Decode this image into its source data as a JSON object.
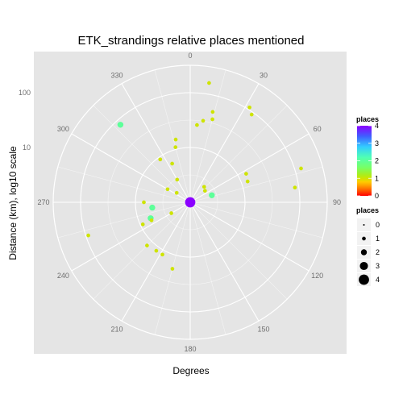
{
  "chart_data": {
    "type": "scatter",
    "coordinate_system": "polar",
    "title": "ETK_strandings relative places mentioned",
    "xlabel": "Degrees",
    "ylabel": "Distance (km), log10 scale",
    "angle_ticks": [
      "0",
      "30",
      "60",
      "90",
      "120",
      "150",
      "180",
      "210",
      "240",
      "270",
      "300",
      "330"
    ],
    "angle_range": [
      0,
      360
    ],
    "radius_scale": "log10",
    "radius_range_log10": [
      0,
      2.5
    ],
    "radius_ticks": [
      {
        "value": 10,
        "label": "10"
      },
      {
        "value": 100,
        "label": "100"
      }
    ],
    "grid": true,
    "legend_position": "right",
    "legends": [
      {
        "type": "colorbar",
        "title": "places",
        "ticks": [
          "4",
          "3",
          "2",
          "1",
          "0"
        ],
        "colors": [
          "#8b00ff",
          "#6a3dff",
          "#3f5fff",
          "#33ccff",
          "#55ff99",
          "#a0ff33",
          "#ddff00",
          "#ffdd00",
          "#ff8800",
          "#ff0000"
        ]
      },
      {
        "type": "size",
        "title": "places",
        "labels": [
          "0",
          "1",
          "2",
          "3",
          "4"
        ]
      }
    ],
    "points": [
      {
        "angle": 0,
        "distance_km": 1,
        "places": 0
      },
      {
        "angle": 9,
        "distance_km": 160,
        "places": 1
      },
      {
        "angle": 14,
        "distance_km": 50,
        "places": 1
      },
      {
        "angle": 15,
        "distance_km": 37,
        "places": 1
      },
      {
        "angle": 9,
        "distance_km": 32,
        "places": 1
      },
      {
        "angle": 5,
        "distance_km": 26,
        "places": 1
      },
      {
        "angle": 32,
        "distance_km": 110,
        "places": 1
      },
      {
        "angle": 35,
        "distance_km": 90,
        "places": 1
      },
      {
        "angle": 73,
        "distance_km": 130,
        "places": 1
      },
      {
        "angle": 63,
        "distance_km": 14,
        "places": 1
      },
      {
        "angle": 70,
        "distance_km": 13,
        "places": 1
      },
      {
        "angle": 82,
        "distance_km": 85,
        "places": 1
      },
      {
        "angle": 52,
        "distance_km": 2.2,
        "places": 1
      },
      {
        "angle": 72,
        "distance_km": 2.6,
        "places": 2
      },
      {
        "angle": 42,
        "distance_km": 2.4,
        "places": 1
      },
      {
        "angle": 335,
        "distance_km": 6,
        "places": 1
      },
      {
        "angle": 345,
        "distance_km": 11,
        "places": 1
      },
      {
        "angle": 325,
        "distance_km": 9,
        "places": 1
      },
      {
        "angle": 347,
        "distance_km": 15,
        "places": 1
      },
      {
        "angle": 318,
        "distance_km": 80,
        "places": 2
      },
      {
        "angle": 300,
        "distance_km": 3,
        "places": 1
      },
      {
        "angle": 330,
        "distance_km": 3,
        "places": 1
      },
      {
        "angle": 305,
        "distance_km": 2,
        "places": 1
      },
      {
        "angle": 270,
        "distance_km": 7,
        "places": 1
      },
      {
        "angle": 252,
        "distance_km": 90,
        "places": 1
      },
      {
        "angle": 262,
        "distance_km": 5,
        "places": 2
      },
      {
        "angle": 245,
        "distance_km": 9,
        "places": 1
      },
      {
        "angle": 248,
        "distance_km": 6,
        "places": 2
      },
      {
        "angle": 245,
        "distance_km": 6,
        "places": 1
      },
      {
        "angle": 240,
        "distance_km": 2.5,
        "places": 1
      },
      {
        "angle": 225,
        "distance_km": 13,
        "places": 1
      },
      {
        "angle": 215,
        "distance_km": 12,
        "places": 1
      },
      {
        "angle": 208,
        "distance_km": 12,
        "places": 1
      },
      {
        "angle": 195,
        "distance_km": 18,
        "places": 1
      },
      {
        "angle": 10,
        "distance_km": 0.6,
        "places": 4
      }
    ]
  }
}
